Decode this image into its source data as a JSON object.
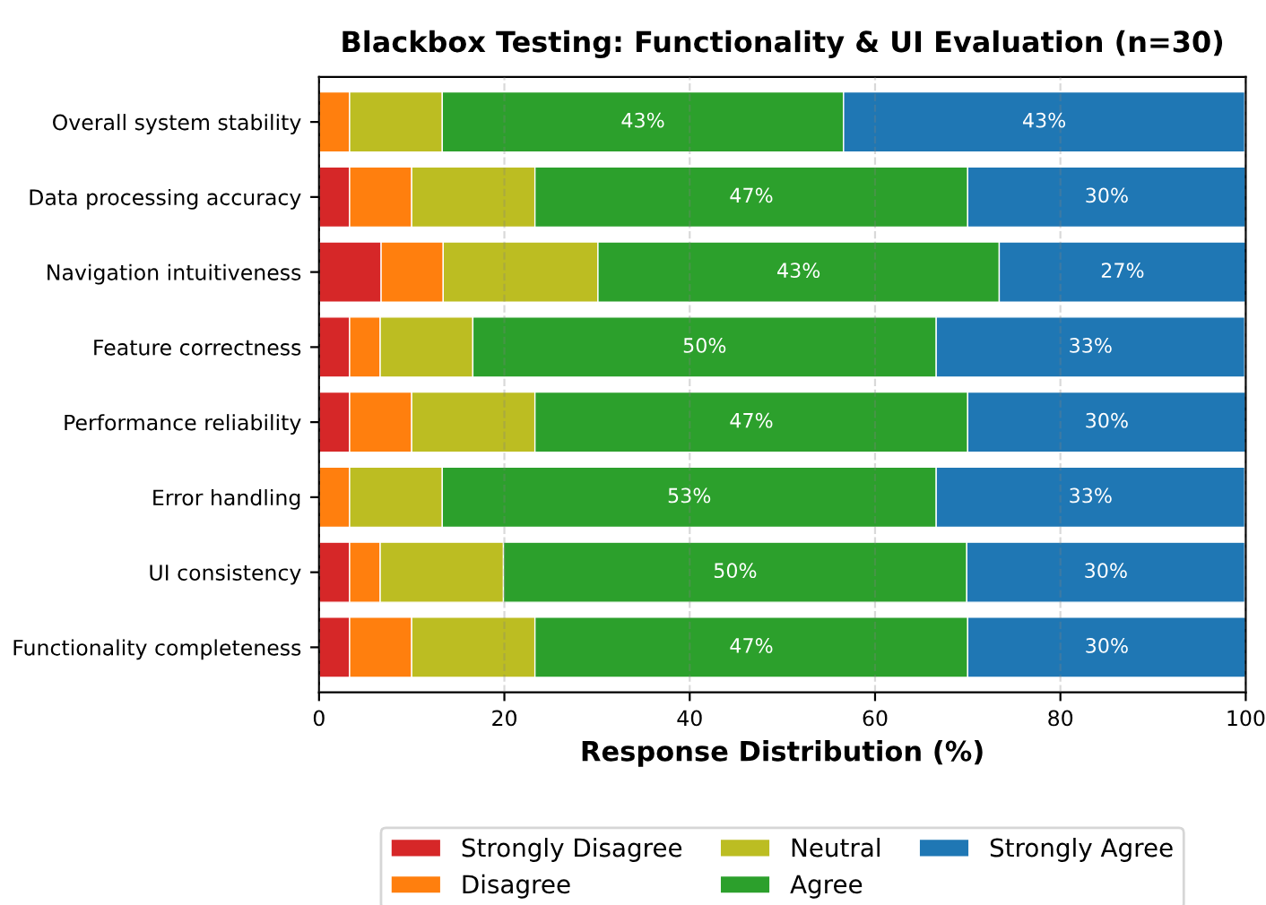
{
  "chart_data": {
    "type": "bar",
    "orientation": "horizontal",
    "stacked": true,
    "title": "Blackbox Testing: Functionality & UI Evaluation (n=30)",
    "xlabel": "Response Distribution (%)",
    "categories": [
      "Overall system stability",
      "Data processing accuracy",
      "Navigation intuitiveness",
      "Feature correctness",
      "Performance reliability",
      "Error handling",
      "UI consistency",
      "Functionality completeness"
    ],
    "series": [
      {
        "name": "Strongly Disagree",
        "color": "#d62728",
        "values": [
          0,
          3.3,
          6.7,
          3.3,
          3.3,
          0,
          3.3,
          3.3
        ],
        "value_labels": [
          null,
          null,
          null,
          null,
          null,
          null,
          null,
          null
        ]
      },
      {
        "name": "Disagree",
        "color": "#ff7f0e",
        "values": [
          3.3,
          6.7,
          6.7,
          3.3,
          6.7,
          3.3,
          3.3,
          6.7
        ],
        "value_labels": [
          null,
          null,
          null,
          null,
          null,
          null,
          null,
          null
        ]
      },
      {
        "name": "Neutral",
        "color": "#bcbd22",
        "values": [
          10,
          13.3,
          16.7,
          10,
          13.3,
          10,
          13.3,
          13.3
        ],
        "value_labels": [
          null,
          null,
          null,
          null,
          null,
          null,
          null,
          null
        ]
      },
      {
        "name": "Agree",
        "color": "#2ca02c",
        "values": [
          43.3,
          46.7,
          43.3,
          50,
          46.7,
          53.3,
          50,
          46.7
        ],
        "value_labels": [
          "43%",
          "47%",
          "43%",
          "50%",
          "47%",
          "53%",
          "50%",
          "47%"
        ]
      },
      {
        "name": "Strongly Agree",
        "color": "#1f77b4",
        "values": [
          43.3,
          30,
          26.7,
          33.3,
          30,
          33.3,
          30,
          30
        ],
        "value_labels": [
          "43%",
          "30%",
          "27%",
          "33%",
          "30%",
          "33%",
          "30%",
          "30%"
        ]
      }
    ],
    "xlim": [
      0,
      100
    ],
    "xticks": [
      0,
      20,
      40,
      60,
      80,
      100
    ],
    "grid": "x",
    "legend": "bottom"
  }
}
